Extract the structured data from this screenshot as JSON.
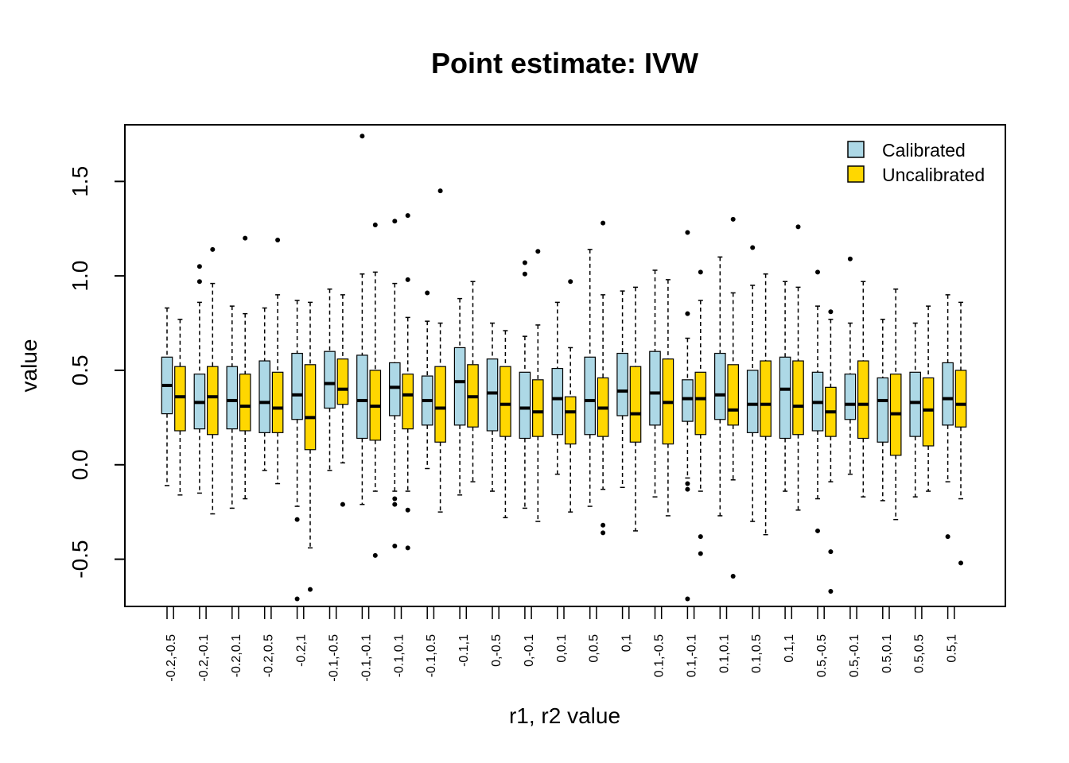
{
  "chart_data": {
    "type": "boxplot",
    "title": "Point estimate: IVW",
    "xlabel": "r1, r2 value",
    "ylabel": "value",
    "ylim": [
      -0.75,
      1.8
    ],
    "yticks": [
      "-0.5",
      "0.0",
      "0.5",
      "1.0",
      "1.5"
    ],
    "legend_position": "top-right",
    "categories": [
      "-0.2,-0.5",
      "-0.2,-0.1",
      "-0.2,0.1",
      "-0.2,0.5",
      "-0.2,1",
      "-0.1,-0.5",
      "-0.1,-0.1",
      "-0.1,0.1",
      "-0.1,0.5",
      "-0.1,1",
      "0,-0.5",
      "0,-0.1",
      "0,0.1",
      "0,0.5",
      "0,1",
      "0.1,-0.5",
      "0.1,-0.1",
      "0.1,0.1",
      "0.1,0.5",
      "0.1,1",
      "0.5,-0.5",
      "0.5,-0.1",
      "0.5,0.1",
      "0.5,0.5",
      "0.5,1"
    ],
    "series": [
      {
        "name": "Calibrated",
        "color": "#add8e6",
        "boxes": [
          {
            "low": -0.11,
            "q1": 0.27,
            "median": 0.42,
            "q3": 0.57,
            "high": 0.83,
            "outliers": []
          },
          {
            "low": -0.15,
            "q1": 0.19,
            "median": 0.33,
            "q3": 0.48,
            "high": 0.86,
            "outliers": [
              0.97,
              1.05
            ]
          },
          {
            "low": -0.23,
            "q1": 0.19,
            "median": 0.34,
            "q3": 0.52,
            "high": 0.84,
            "outliers": []
          },
          {
            "low": -0.03,
            "q1": 0.17,
            "median": 0.33,
            "q3": 0.55,
            "high": 0.83,
            "outliers": []
          },
          {
            "low": -0.22,
            "q1": 0.24,
            "median": 0.37,
            "q3": 0.59,
            "high": 0.87,
            "outliers": [
              -0.29,
              -0.71
            ]
          },
          {
            "low": -0.03,
            "q1": 0.3,
            "median": 0.43,
            "q3": 0.6,
            "high": 0.93,
            "outliers": []
          },
          {
            "low": -0.21,
            "q1": 0.14,
            "median": 0.34,
            "q3": 0.58,
            "high": 1.01,
            "outliers": [
              1.74
            ]
          },
          {
            "low": -0.14,
            "q1": 0.26,
            "median": 0.41,
            "q3": 0.54,
            "high": 0.96,
            "outliers": [
              1.29,
              -0.18,
              -0.21,
              -0.43
            ]
          },
          {
            "low": -0.02,
            "q1": 0.21,
            "median": 0.34,
            "q3": 0.47,
            "high": 0.76,
            "outliers": [
              0.91
            ]
          },
          {
            "low": -0.16,
            "q1": 0.21,
            "median": 0.44,
            "q3": 0.62,
            "high": 0.88,
            "outliers": []
          },
          {
            "low": -0.14,
            "q1": 0.18,
            "median": 0.38,
            "q3": 0.56,
            "high": 0.75,
            "outliers": []
          },
          {
            "low": -0.23,
            "q1": 0.14,
            "median": 0.3,
            "q3": 0.49,
            "high": 0.68,
            "outliers": [
              1.01,
              1.07
            ]
          },
          {
            "low": -0.05,
            "q1": 0.16,
            "median": 0.35,
            "q3": 0.51,
            "high": 0.86,
            "outliers": []
          },
          {
            "low": -0.22,
            "q1": 0.16,
            "median": 0.34,
            "q3": 0.57,
            "high": 1.14,
            "outliers": []
          },
          {
            "low": -0.12,
            "q1": 0.26,
            "median": 0.39,
            "q3": 0.59,
            "high": 0.92,
            "outliers": []
          },
          {
            "low": -0.17,
            "q1": 0.21,
            "median": 0.38,
            "q3": 0.6,
            "high": 1.03,
            "outliers": []
          },
          {
            "low": -0.07,
            "q1": 0.23,
            "median": 0.35,
            "q3": 0.45,
            "high": 0.67,
            "outliers": [
              0.8,
              1.23,
              -0.1,
              -0.13,
              -0.71
            ]
          },
          {
            "low": -0.27,
            "q1": 0.24,
            "median": 0.37,
            "q3": 0.59,
            "high": 1.1,
            "outliers": []
          },
          {
            "low": -0.3,
            "q1": 0.17,
            "median": 0.32,
            "q3": 0.5,
            "high": 0.95,
            "outliers": [
              1.15
            ]
          },
          {
            "low": -0.14,
            "q1": 0.14,
            "median": 0.4,
            "q3": 0.57,
            "high": 0.97,
            "outliers": []
          },
          {
            "low": -0.18,
            "q1": 0.18,
            "median": 0.33,
            "q3": 0.49,
            "high": 0.84,
            "outliers": [
              1.02,
              -0.35
            ]
          },
          {
            "low": -0.05,
            "q1": 0.24,
            "median": 0.32,
            "q3": 0.48,
            "high": 0.75,
            "outliers": [
              1.09
            ]
          },
          {
            "low": -0.19,
            "q1": 0.12,
            "median": 0.34,
            "q3": 0.46,
            "high": 0.77,
            "outliers": []
          },
          {
            "low": -0.17,
            "q1": 0.15,
            "median": 0.33,
            "q3": 0.49,
            "high": 0.75,
            "outliers": []
          },
          {
            "low": -0.09,
            "q1": 0.21,
            "median": 0.35,
            "q3": 0.54,
            "high": 0.9,
            "outliers": [
              -0.38
            ]
          }
        ]
      },
      {
        "name": "Uncalibrated",
        "color": "#ffd700",
        "boxes": [
          {
            "low": -0.16,
            "q1": 0.18,
            "median": 0.36,
            "q3": 0.52,
            "high": 0.77,
            "outliers": []
          },
          {
            "low": -0.26,
            "q1": 0.16,
            "median": 0.36,
            "q3": 0.52,
            "high": 0.96,
            "outliers": [
              1.14
            ]
          },
          {
            "low": -0.18,
            "q1": 0.18,
            "median": 0.31,
            "q3": 0.48,
            "high": 0.8,
            "outliers": [
              1.2
            ]
          },
          {
            "low": -0.1,
            "q1": 0.17,
            "median": 0.3,
            "q3": 0.49,
            "high": 0.9,
            "outliers": [
              1.19
            ]
          },
          {
            "low": -0.44,
            "q1": 0.08,
            "median": 0.25,
            "q3": 0.53,
            "high": 0.86,
            "outliers": [
              -0.66
            ]
          },
          {
            "low": 0.01,
            "q1": 0.32,
            "median": 0.4,
            "q3": 0.56,
            "high": 0.9,
            "outliers": [
              -0.21
            ]
          },
          {
            "low": -0.14,
            "q1": 0.13,
            "median": 0.31,
            "q3": 0.5,
            "high": 1.02,
            "outliers": [
              1.27,
              -0.48
            ]
          },
          {
            "low": -0.14,
            "q1": 0.19,
            "median": 0.37,
            "q3": 0.48,
            "high": 0.78,
            "outliers": [
              0.98,
              1.32,
              -0.24,
              -0.44
            ]
          },
          {
            "low": -0.25,
            "q1": 0.12,
            "median": 0.3,
            "q3": 0.52,
            "high": 0.75,
            "outliers": [
              1.45
            ]
          },
          {
            "low": -0.09,
            "q1": 0.2,
            "median": 0.36,
            "q3": 0.53,
            "high": 0.97,
            "outliers": []
          },
          {
            "low": -0.28,
            "q1": 0.15,
            "median": 0.32,
            "q3": 0.52,
            "high": 0.71,
            "outliers": []
          },
          {
            "low": -0.3,
            "q1": 0.15,
            "median": 0.28,
            "q3": 0.45,
            "high": 0.74,
            "outliers": [
              1.13
            ]
          },
          {
            "low": -0.25,
            "q1": 0.11,
            "median": 0.28,
            "q3": 0.36,
            "high": 0.62,
            "outliers": [
              0.97
            ]
          },
          {
            "low": -0.13,
            "q1": 0.15,
            "median": 0.3,
            "q3": 0.46,
            "high": 0.9,
            "outliers": [
              1.28,
              -0.32,
              -0.36
            ]
          },
          {
            "low": -0.35,
            "q1": 0.12,
            "median": 0.27,
            "q3": 0.52,
            "high": 0.94,
            "outliers": []
          },
          {
            "low": -0.27,
            "q1": 0.11,
            "median": 0.33,
            "q3": 0.56,
            "high": 0.98,
            "outliers": []
          },
          {
            "low": -0.14,
            "q1": 0.16,
            "median": 0.35,
            "q3": 0.49,
            "high": 0.87,
            "outliers": [
              1.02,
              -0.38,
              -0.47
            ]
          },
          {
            "low": -0.08,
            "q1": 0.21,
            "median": 0.29,
            "q3": 0.53,
            "high": 0.91,
            "outliers": [
              1.3,
              -0.59
            ]
          },
          {
            "low": -0.37,
            "q1": 0.15,
            "median": 0.32,
            "q3": 0.55,
            "high": 1.01,
            "outliers": []
          },
          {
            "low": -0.24,
            "q1": 0.16,
            "median": 0.31,
            "q3": 0.55,
            "high": 0.94,
            "outliers": [
              1.26
            ]
          },
          {
            "low": -0.09,
            "q1": 0.15,
            "median": 0.28,
            "q3": 0.41,
            "high": 0.77,
            "outliers": [
              0.81,
              -0.46,
              -0.67
            ]
          },
          {
            "low": -0.17,
            "q1": 0.14,
            "median": 0.32,
            "q3": 0.55,
            "high": 0.97,
            "outliers": []
          },
          {
            "low": -0.29,
            "q1": 0.05,
            "median": 0.27,
            "q3": 0.48,
            "high": 0.93,
            "outliers": []
          },
          {
            "low": -0.14,
            "q1": 0.1,
            "median": 0.29,
            "q3": 0.46,
            "high": 0.84,
            "outliers": []
          },
          {
            "low": -0.18,
            "q1": 0.2,
            "median": 0.32,
            "q3": 0.5,
            "high": 0.86,
            "outliers": [
              -0.52
            ]
          }
        ]
      }
    ]
  }
}
